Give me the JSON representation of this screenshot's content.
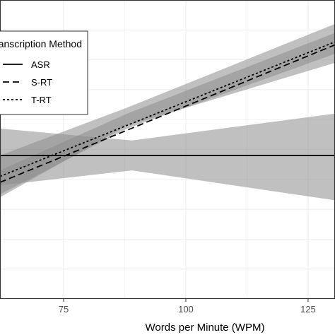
{
  "chart_data": {
    "type": "line",
    "xlabel": "Words per Minute (WPM)",
    "ylabel": "",
    "x_ticks": [
      75,
      100,
      125
    ],
    "x_tick_labels": [
      "75",
      "100",
      "125"
    ],
    "xlim": [
      62,
      130.5
    ],
    "ylim": [
      0,
      1
    ],
    "grid": true,
    "legend": {
      "title": "Transcription Method",
      "placement": "top-left",
      "entries": [
        "ASR",
        "S-RT",
        "T-RT"
      ]
    },
    "series": [
      {
        "name": "ASR",
        "line_style": "solid",
        "x": [
          62,
          130.5
        ],
        "y": [
          0.48,
          0.48
        ],
        "ci_lower": [
          [
            62,
            0.38
          ],
          [
            89,
            0.43
          ],
          [
            130.5,
            0.33
          ]
        ],
        "ci_upper": [
          [
            62,
            0.57
          ],
          [
            89,
            0.53
          ],
          [
            130.5,
            0.62
          ]
        ]
      },
      {
        "name": "S-RT",
        "line_style": "dashed",
        "x": [
          62,
          130.5
        ],
        "y": [
          0.39,
          0.85
        ],
        "ci_lower": [
          [
            62,
            0.35
          ],
          [
            88,
            0.57
          ],
          [
            130.5,
            0.82
          ]
        ],
        "ci_upper": [
          [
            62,
            0.43
          ],
          [
            88,
            0.62
          ],
          [
            130.5,
            0.89
          ]
        ]
      },
      {
        "name": "T-RT",
        "line_style": "dotted",
        "x": [
          62,
          130.5
        ],
        "y": [
          0.41,
          0.86
        ],
        "ci_lower": [
          [
            62,
            0.34
          ],
          [
            88,
            0.58
          ],
          [
            130.5,
            0.79
          ]
        ],
        "ci_upper": [
          [
            62,
            0.48
          ],
          [
            88,
            0.64
          ],
          [
            130.5,
            0.92
          ]
        ]
      }
    ],
    "colors": {
      "background": "#ffffff",
      "panel_border": "#333333",
      "grid_major": "#ebebeb",
      "ribbon": "#8c8c8c",
      "line": "#000000"
    }
  }
}
